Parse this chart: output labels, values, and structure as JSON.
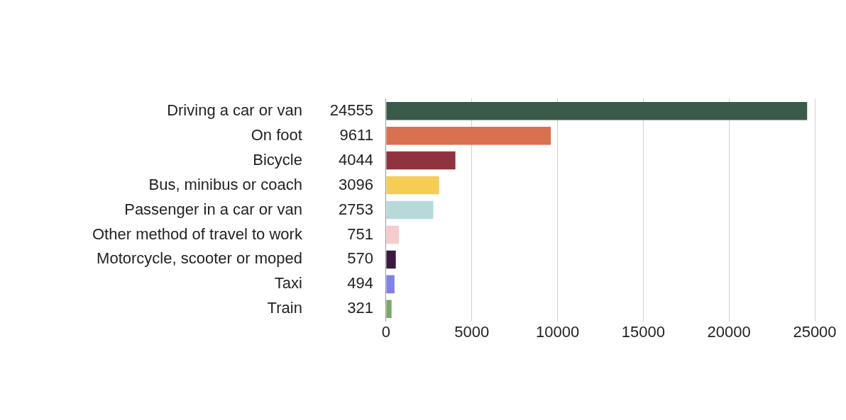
{
  "chart_data": {
    "type": "bar",
    "orientation": "horizontal",
    "categories": [
      "Driving a car or van",
      "On foot",
      "Bicycle",
      "Bus, minibus or coach",
      "Passenger in a car or van",
      "Other method of travel to work",
      "Motorcycle, scooter or moped",
      "Taxi",
      "Train"
    ],
    "values": [
      24555,
      9611,
      4044,
      3096,
      2753,
      751,
      570,
      494,
      321
    ],
    "colors": [
      "#3a5a4a",
      "#d9704f",
      "#8f343f",
      "#f5cd55",
      "#b7d9da",
      "#f3cccb",
      "#3b1842",
      "#7f80e8",
      "#7aa865"
    ],
    "xlim": [
      0,
      25000
    ],
    "xticks": [
      0,
      5000,
      10000,
      15000,
      20000,
      25000
    ],
    "grid": "x",
    "data_labels": true,
    "legend": false
  }
}
